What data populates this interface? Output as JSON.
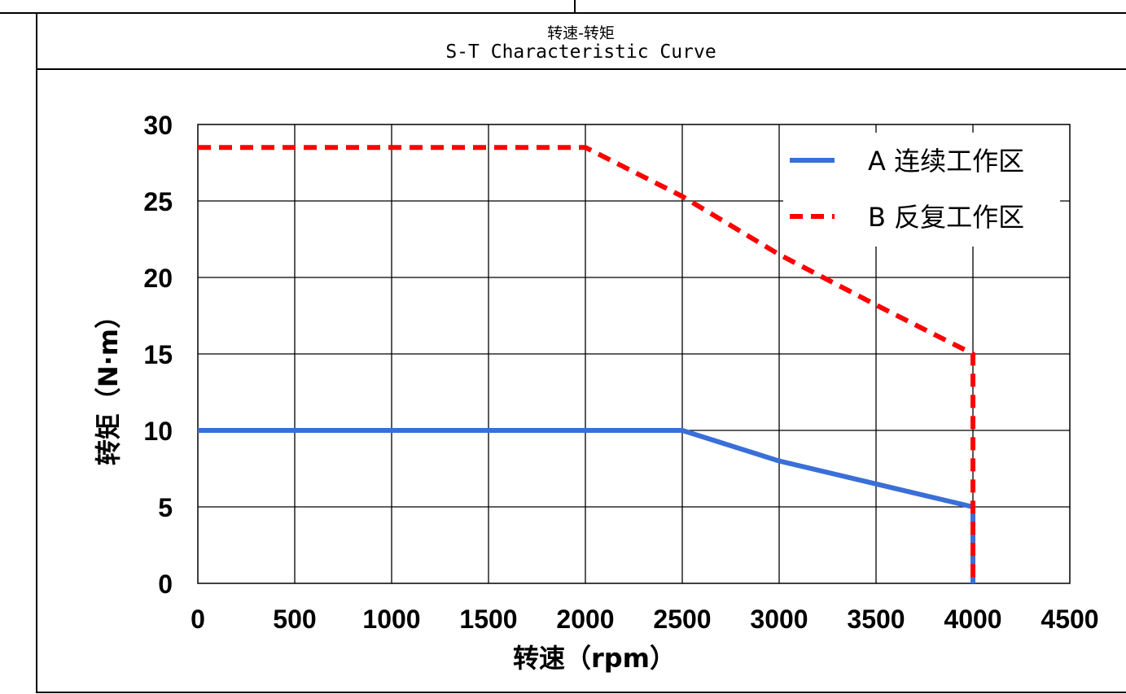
{
  "chart_title_cn": "转速-转矩",
  "chart_title_en": "S-T Characteristic Curve",
  "chart_data": {
    "type": "line",
    "xlabel": "转速（rpm）",
    "ylabel": "转矩（N·m）",
    "xlim": [
      0,
      4500
    ],
    "ylim": [
      0,
      30
    ],
    "xticks": [
      0,
      500,
      1000,
      1500,
      2000,
      2500,
      3000,
      3500,
      4000,
      4500
    ],
    "yticks": [
      0,
      5,
      10,
      15,
      20,
      25,
      30
    ],
    "grid": true,
    "legend_position": "top-right",
    "series": [
      {
        "name": "A 连续工作区",
        "color": "#3a6fd8",
        "style": "solid",
        "x": [
          0,
          2500,
          3000,
          3500,
          4000,
          4000
        ],
        "y": [
          10,
          10,
          8,
          6.5,
          5,
          0
        ]
      },
      {
        "name": "B 反复工作区",
        "color": "#ff0000",
        "style": "dashed",
        "x": [
          0,
          2000,
          2500,
          3000,
          3500,
          4000,
          4000
        ],
        "y": [
          28.5,
          28.5,
          25.3,
          21.5,
          18.2,
          15,
          0
        ]
      }
    ]
  }
}
